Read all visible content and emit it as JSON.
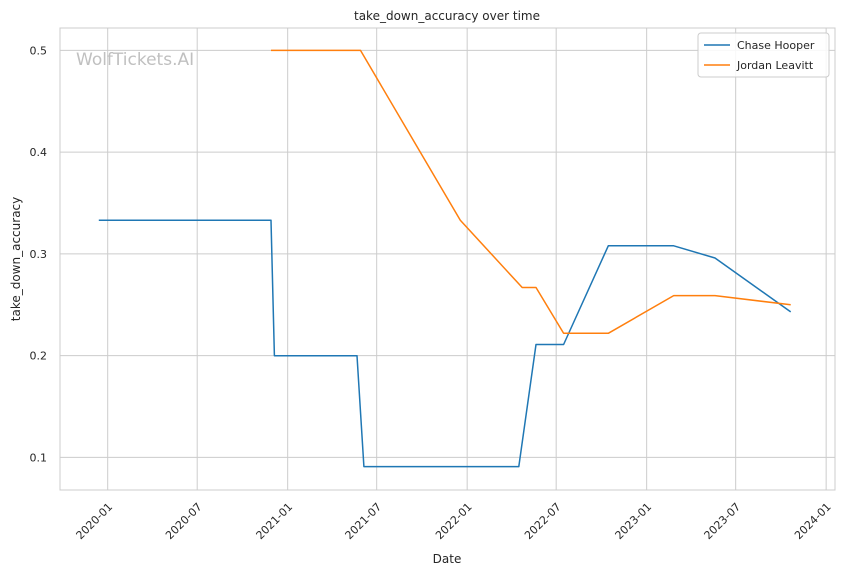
{
  "chart_data": {
    "type": "line",
    "title": "take_down_accuracy over time",
    "xlabel": "Date",
    "ylabel": "take_down_accuracy",
    "watermark": "WolfTickets.AI",
    "x_range": [
      "2019-09-26",
      "2024-01-19"
    ],
    "ylim": [
      0.068,
      0.522
    ],
    "x_ticks": [
      "2020-01",
      "2020-07",
      "2021-01",
      "2021-07",
      "2022-01",
      "2022-07",
      "2023-01",
      "2023-07",
      "2024-01"
    ],
    "x_tick_dates": [
      "2020-01-01",
      "2020-07-01",
      "2021-01-01",
      "2021-07-01",
      "2022-01-01",
      "2022-07-01",
      "2023-01-01",
      "2023-07-01",
      "2024-01-01"
    ],
    "y_ticks": [
      0.1,
      0.2,
      0.3,
      0.4,
      0.5
    ],
    "y_tick_labels": [
      "0.1",
      "0.2",
      "0.3",
      "0.4",
      "0.5"
    ],
    "grid": true,
    "legend_position": "top-right",
    "series": [
      {
        "name": "Chase Hooper",
        "color": "#1f77b4",
        "points": [
          [
            "2019-12-14",
            0.333
          ],
          [
            "2020-11-28",
            0.333
          ],
          [
            "2020-12-05",
            0.2
          ],
          [
            "2021-05-22",
            0.2
          ],
          [
            "2021-06-05",
            0.091
          ],
          [
            "2022-04-16",
            0.091
          ],
          [
            "2022-05-21",
            0.211
          ],
          [
            "2022-07-16",
            0.211
          ],
          [
            "2022-10-15",
            0.308
          ],
          [
            "2023-02-25",
            0.308
          ],
          [
            "2023-05-20",
            0.296
          ],
          [
            "2023-10-21",
            0.243
          ]
        ]
      },
      {
        "name": "Jordan Leavitt",
        "color": "#ff7f0e",
        "points": [
          [
            "2020-11-28",
            0.5
          ],
          [
            "2021-05-29",
            0.5
          ],
          [
            "2021-12-18",
            0.333
          ],
          [
            "2022-04-23",
            0.267
          ],
          [
            "2022-05-21",
            0.267
          ],
          [
            "2022-07-16",
            0.222
          ],
          [
            "2022-10-15",
            0.222
          ],
          [
            "2023-02-25",
            0.259
          ],
          [
            "2023-05-20",
            0.259
          ],
          [
            "2023-10-21",
            0.25
          ]
        ]
      }
    ]
  }
}
